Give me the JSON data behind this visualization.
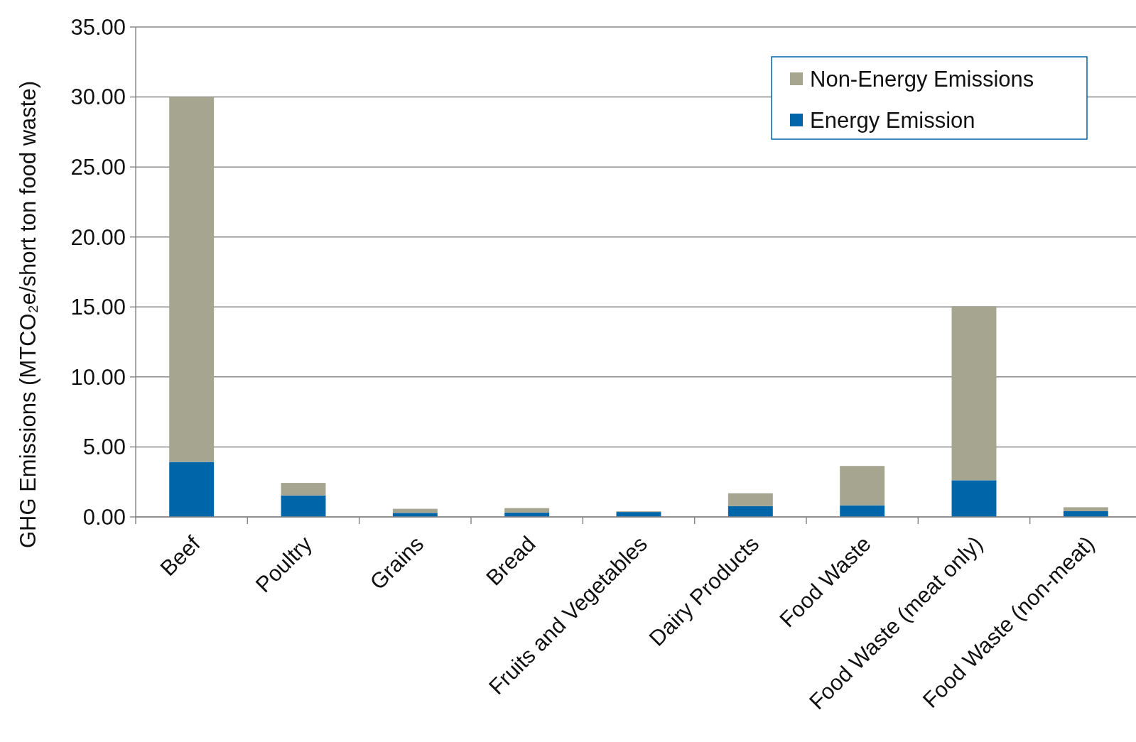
{
  "chart_data": {
    "type": "bar",
    "stacked": true,
    "ylabel": "GHG Emissions (MTCO₂e/short ton food waste)",
    "categories": [
      "Beef",
      "Poultry",
      "Grains",
      "Bread",
      "Fruits and Vegetables",
      "Dairy Products",
      "Food Waste",
      "Food Waste (meat only)",
      "Food Waste (non-meat)"
    ],
    "series": [
      {
        "name": "Energy Emission",
        "color": "#0066aa",
        "values": [
          3.93,
          1.54,
          0.29,
          0.31,
          0.35,
          0.77,
          0.83,
          2.62,
          0.41
        ]
      },
      {
        "name": "Non-Energy Emissions",
        "color": "#a5a590",
        "values": [
          26.07,
          0.89,
          0.29,
          0.32,
          0.05,
          0.92,
          2.81,
          12.43,
          0.28
        ]
      }
    ],
    "ylim": [
      0,
      35
    ],
    "yticks": [
      {
        "value": 0,
        "label": "0.00"
      },
      {
        "value": 5,
        "label": "5.00"
      },
      {
        "value": 10,
        "label": "10.00"
      },
      {
        "value": 15,
        "label": "15.00"
      },
      {
        "value": 20,
        "label": "20.00"
      },
      {
        "value": 25,
        "label": "25.00"
      },
      {
        "value": 30,
        "label": "30.00"
      },
      {
        "value": 35,
        "label": "35.00"
      }
    ],
    "grid": "y",
    "legend": "top right"
  }
}
